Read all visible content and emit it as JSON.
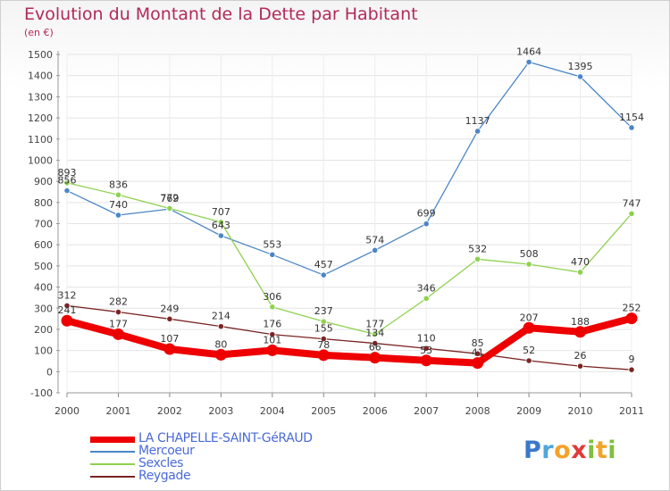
{
  "header": {
    "title": "Evolution du Montant de la Dette par Habitant",
    "unit": "(en €)"
  },
  "brand": {
    "name": "Proxiti"
  },
  "chart_data": {
    "type": "line",
    "title": "Evolution du Montant de la Dette par Habitant",
    "subtitle": "(en €)",
    "xlabel": "",
    "ylabel": "",
    "ylim": [
      -100,
      1500
    ],
    "yticks": [
      -100,
      0,
      100,
      200,
      300,
      400,
      500,
      600,
      700,
      800,
      900,
      1000,
      1100,
      1200,
      1300,
      1400,
      1500
    ],
    "grid": true,
    "legend": "bottom-left",
    "categories": [
      "2000",
      "2001",
      "2002",
      "2003",
      "2004",
      "2005",
      "2006",
      "2007",
      "2008",
      "2009",
      "2010",
      "2011"
    ],
    "series": [
      {
        "name": "LA CHAPELLE-SAINT-GéRAUD",
        "color": "#ee0000",
        "bold": true,
        "values": [
          241,
          177,
          107,
          80,
          101,
          78,
          66,
          53,
          41,
          207,
          188,
          252
        ],
        "labels": [
          "241",
          "177",
          "107",
          "80",
          "101",
          "78",
          "66",
          "53",
          "41",
          "207",
          "188",
          "252"
        ]
      },
      {
        "name": "Mercoeur",
        "color": "#4b86c6",
        "bold": false,
        "values": [
          856,
          740,
          769,
          643,
          553,
          457,
          574,
          699,
          1137,
          1464,
          1395,
          1154
        ],
        "labels": [
          "856",
          "740",
          "769",
          "643",
          "553",
          "457",
          "574",
          "699",
          "1137",
          "1464",
          "1395",
          "1154"
        ]
      },
      {
        "name": "Sexcles",
        "color": "#8fd14f",
        "bold": false,
        "values": [
          893,
          836,
          772,
          707,
          306,
          237,
          177,
          346,
          532,
          508,
          470,
          747
        ],
        "labels": [
          "893",
          "836",
          "772",
          "707",
          "306",
          "237",
          "177",
          "346",
          "532",
          "508",
          "470",
          "747"
        ]
      },
      {
        "name": "Reygade",
        "color": "#7b2424",
        "bold": false,
        "values": [
          312,
          282,
          249,
          214,
          176,
          155,
          134,
          110,
          85,
          52,
          26,
          9
        ],
        "labels": [
          "312",
          "282",
          "249",
          "214",
          "176",
          "155",
          "134",
          "110",
          "85",
          "52",
          "26",
          "9"
        ]
      }
    ]
  }
}
